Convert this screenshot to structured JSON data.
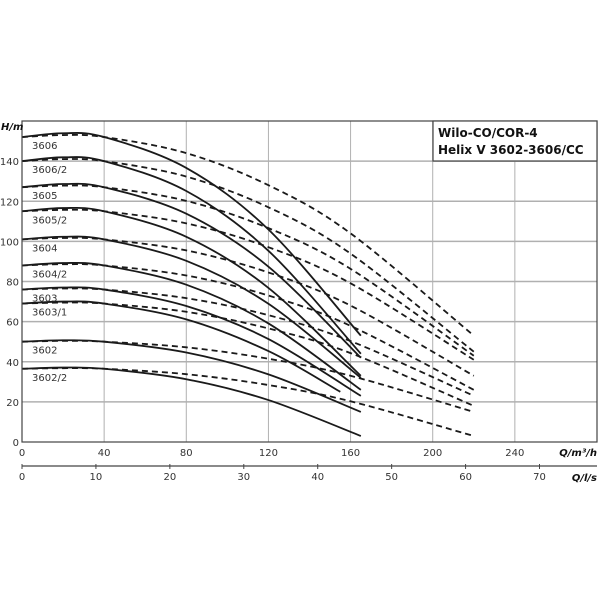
{
  "chart_data": {
    "type": "line",
    "title": [
      "Wilo-CO/COR-4",
      "Helix V 3602-3606/CC"
    ],
    "ylabel": "H/m",
    "xlabel": "Q/m³/h",
    "x2label": "Q/l/s",
    "xlim": [
      0,
      280
    ],
    "ylim": [
      0,
      160
    ],
    "x_ticks": [
      0,
      40,
      80,
      120,
      160,
      200,
      240
    ],
    "y_ticks": [
      0,
      20,
      40,
      60,
      80,
      100,
      120,
      140
    ],
    "x2_ticks": [
      0,
      10,
      20,
      30,
      40,
      50,
      60,
      70
    ],
    "grid": true,
    "series": [
      {
        "name": "3606",
        "solid": [
          [
            0,
            152
          ],
          [
            20,
            153.9
          ],
          [
            40,
            152
          ],
          [
            80,
            136.6
          ],
          [
            120,
            105.9
          ],
          [
            165,
            53
          ]
        ],
        "dashed": [
          [
            0,
            152
          ],
          [
            20,
            153
          ],
          [
            40,
            152
          ],
          [
            80,
            144
          ],
          [
            120,
            128
          ],
          [
            160,
            104
          ],
          [
            220,
            53
          ]
        ]
      },
      {
        "name": "3606/2",
        "solid": [
          [
            0,
            140
          ],
          [
            20,
            141.9
          ],
          [
            40,
            140
          ],
          [
            80,
            125.1
          ],
          [
            120,
            95.3
          ],
          [
            165,
            44
          ]
        ],
        "dashed": [
          [
            0,
            140
          ],
          [
            20,
            141
          ],
          [
            40,
            140
          ],
          [
            80,
            132.3
          ],
          [
            120,
            117
          ],
          [
            160,
            93.9
          ],
          [
            220,
            45
          ]
        ]
      },
      {
        "name": "3605",
        "solid": [
          [
            0,
            127
          ],
          [
            20,
            128.6
          ],
          [
            40,
            127
          ],
          [
            80,
            113.8
          ],
          [
            120,
            87.4
          ],
          [
            165,
            42
          ]
        ],
        "dashed": [
          [
            0,
            127
          ],
          [
            20,
            127.8
          ],
          [
            40,
            127
          ],
          [
            80,
            120.2
          ],
          [
            120,
            106.6
          ],
          [
            160,
            86.3
          ],
          [
            220,
            43
          ]
        ]
      },
      {
        "name": "3605/2",
        "solid": [
          [
            0,
            115
          ],
          [
            20,
            116.6
          ],
          [
            40,
            115
          ],
          [
            80,
            102.3
          ],
          [
            120,
            76.8
          ],
          [
            165,
            33
          ]
        ],
        "dashed": [
          [
            0,
            115
          ],
          [
            20,
            115.7
          ],
          [
            40,
            115
          ],
          [
            80,
            109
          ],
          [
            120,
            97.1
          ],
          [
            160,
            79.1
          ],
          [
            220,
            41
          ]
        ]
      },
      {
        "name": "3604",
        "solid": [
          [
            0,
            101
          ],
          [
            20,
            102.3
          ],
          [
            40,
            101
          ],
          [
            80,
            90.3
          ],
          [
            120,
            68.9
          ],
          [
            165,
            32
          ]
        ],
        "dashed": [
          [
            0,
            101
          ],
          [
            20,
            101.7
          ],
          [
            40,
            101
          ],
          [
            80,
            95.5
          ],
          [
            120,
            84.5
          ],
          [
            160,
            68
          ],
          [
            220,
            33
          ]
        ]
      },
      {
        "name": "3604/2",
        "solid": [
          [
            0,
            88
          ],
          [
            20,
            89.2
          ],
          [
            40,
            88
          ],
          [
            80,
            78.4
          ],
          [
            120,
            59.1
          ],
          [
            165,
            26
          ]
        ],
        "dashed": [
          [
            0,
            88
          ],
          [
            20,
            88.6
          ],
          [
            40,
            88
          ],
          [
            80,
            83
          ],
          [
            120,
            73
          ],
          [
            160,
            57.9
          ],
          [
            220,
            26
          ]
        ]
      },
      {
        "name": "3603",
        "solid": [
          [
            0,
            76
          ],
          [
            20,
            77
          ],
          [
            40,
            76
          ],
          [
            80,
            67.8
          ],
          [
            120,
            51.3
          ],
          [
            165,
            23
          ]
        ],
        "dashed": [
          [
            0,
            76
          ],
          [
            20,
            76.5
          ],
          [
            40,
            76
          ],
          [
            80,
            71.7
          ],
          [
            120,
            63.2
          ],
          [
            160,
            50.3
          ],
          [
            220,
            23
          ]
        ]
      },
      {
        "name": "3603/1",
        "solid": [
          [
            0,
            69
          ],
          [
            20,
            70
          ],
          [
            40,
            69
          ],
          [
            80,
            61.1
          ],
          [
            120,
            45.3
          ],
          [
            155,
            25
          ]
        ],
        "dashed": [
          [
            0,
            69
          ],
          [
            20,
            69.5
          ],
          [
            40,
            69
          ],
          [
            80,
            64.9
          ],
          [
            120,
            56.6
          ],
          [
            160,
            44.3
          ],
          [
            220,
            18
          ]
        ]
      },
      {
        "name": "3602",
        "solid": [
          [
            0,
            50
          ],
          [
            20,
            50.7
          ],
          [
            40,
            50
          ],
          [
            80,
            44.6
          ],
          [
            120,
            33.7
          ],
          [
            165,
            15
          ]
        ],
        "dashed": [
          [
            0,
            50
          ],
          [
            20,
            50.4
          ],
          [
            40,
            50
          ],
          [
            80,
            47.2
          ],
          [
            120,
            41.5
          ],
          [
            160,
            33
          ],
          [
            220,
            15
          ]
        ]
      },
      {
        "name": "3602/2",
        "solid": [
          [
            0,
            36.5
          ],
          [
            20,
            37.1
          ],
          [
            40,
            36.5
          ],
          [
            80,
            31.3
          ],
          [
            120,
            20.9
          ],
          [
            165,
            3
          ]
        ],
        "dashed": [
          [
            0,
            36.5
          ],
          [
            20,
            36.8
          ],
          [
            40,
            36.5
          ],
          [
            80,
            33.8
          ],
          [
            120,
            28.4
          ],
          [
            160,
            20.3
          ],
          [
            220,
            3
          ]
        ]
      }
    ],
    "colors": {
      "curve": "#1a1a1a",
      "grid": "#b0b0b0",
      "frame": "#444444"
    }
  }
}
